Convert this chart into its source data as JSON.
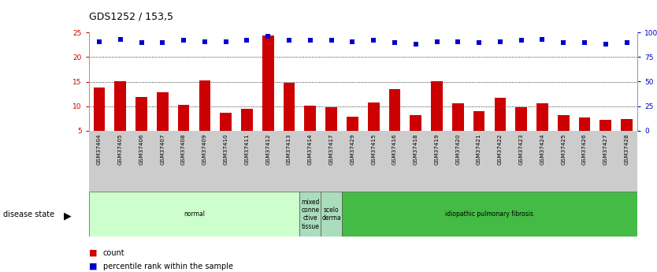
{
  "title": "GDS1252 / 153,5",
  "samples": [
    "GSM37404",
    "GSM37405",
    "GSM37406",
    "GSM37407",
    "GSM37408",
    "GSM37409",
    "GSM37410",
    "GSM37411",
    "GSM37412",
    "GSM37413",
    "GSM37414",
    "GSM37417",
    "GSM37429",
    "GSM37415",
    "GSM37416",
    "GSM37418",
    "GSM37419",
    "GSM37420",
    "GSM37421",
    "GSM37422",
    "GSM37423",
    "GSM37424",
    "GSM37425",
    "GSM37426",
    "GSM37427",
    "GSM37428"
  ],
  "counts": [
    13.8,
    15.0,
    11.8,
    12.9,
    10.2,
    15.2,
    8.7,
    9.5,
    24.5,
    14.8,
    10.1,
    9.8,
    7.8,
    10.7,
    13.4,
    8.1,
    15.0,
    10.5,
    8.9,
    11.7,
    9.8,
    10.5,
    8.1,
    7.7,
    7.2,
    7.4
  ],
  "percentile_ranks_pct": [
    91,
    93,
    90,
    90,
    92,
    91,
    91,
    92,
    96,
    92,
    92,
    92,
    91,
    92,
    90,
    88,
    91,
    91,
    90,
    91,
    92,
    93,
    90,
    90,
    88,
    90
  ],
  "ylim_left": [
    5,
    25
  ],
  "ylim_right": [
    0,
    100
  ],
  "yticks_left": [
    5,
    10,
    15,
    20,
    25
  ],
  "yticks_right": [
    0,
    25,
    50,
    75,
    100
  ],
  "bar_color": "#cc0000",
  "dot_color": "#0000cc",
  "bg_color": "#ffffff",
  "xticklabel_bg": "#d0d0d0",
  "normal_color": "#ccffcc",
  "mixed_color": "#aaddbb",
  "ipf_color": "#44bb44",
  "title_fontsize": 9,
  "tick_fontsize": 6.5,
  "legend_fontsize": 7,
  "group_info": [
    {
      "start": 0,
      "end": 10,
      "label": "normal",
      "color": "#ccffcc"
    },
    {
      "start": 10,
      "end": 11,
      "label": "mixed\nconne\nctive\ntissue",
      "color": "#aaddbb"
    },
    {
      "start": 11,
      "end": 12,
      "label": "scelo\nderma",
      "color": "#aaddbb"
    },
    {
      "start": 12,
      "end": 26,
      "label": "idiopathic pulmonary fibrosis",
      "color": "#44bb44"
    }
  ]
}
